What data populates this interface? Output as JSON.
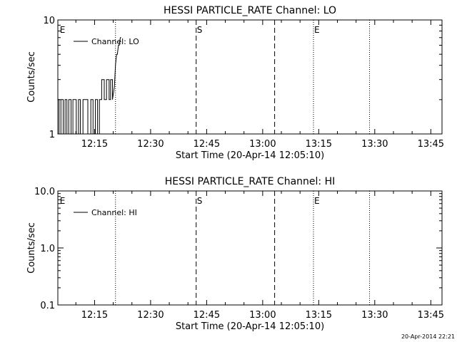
{
  "footer_timestamp": "20-Apr-2014 22:21",
  "chart_data": [
    {
      "type": "line",
      "title": "HESSI PARTICLE_RATE Channel: LO",
      "xlabel": "Start Time (20-Apr-14 12:05:10)",
      "ylabel": "Counts/sec",
      "y_scale": "log",
      "ylim": [
        1,
        10
      ],
      "y_ticks": [
        {
          "value": 1,
          "label": "1"
        },
        {
          "value": 10,
          "label": "10"
        }
      ],
      "xlim_minutes": [
        725.17,
        828.0
      ],
      "x_ticks": [
        {
          "minute": 735,
          "label": "12:15"
        },
        {
          "minute": 750,
          "label": "12:30"
        },
        {
          "minute": 765,
          "label": "12:45"
        },
        {
          "minute": 780,
          "label": "13:00"
        },
        {
          "minute": 795,
          "label": "13:15"
        },
        {
          "minute": 810,
          "label": "13:30"
        },
        {
          "minute": 825,
          "label": "13:45"
        }
      ],
      "legend": {
        "label": "Channel: LO",
        "placement": "top-left"
      },
      "event_markers": [
        {
          "minute": 725.5,
          "label": "E",
          "style": "none"
        },
        {
          "minute": 740.6,
          "label": "",
          "style": "dotted"
        },
        {
          "minute": 762.2,
          "label": "S",
          "style": "dashed"
        },
        {
          "minute": 783.2,
          "label": "",
          "style": "dashed"
        },
        {
          "minute": 793.6,
          "label": "E",
          "style": "dotted"
        },
        {
          "minute": 808.6,
          "label": "",
          "style": "dotted"
        }
      ],
      "series": [
        {
          "x": [
            725.17,
            725.5,
            725.5,
            726.0,
            726.0,
            726.6,
            726.6,
            727.1,
            727.1,
            727.6,
            727.6,
            728.1,
            728.1,
            728.7,
            728.7,
            729.2,
            729.2,
            730.1,
            730.1,
            730.7,
            730.7,
            731.2,
            731.2,
            731.9,
            731.9,
            732.5,
            732.5,
            733.2,
            733.2,
            734.0,
            734.0,
            734.6,
            734.6,
            735.2,
            735.2,
            735.8,
            735.8,
            736.3,
            736.3,
            736.9,
            736.9,
            737.6,
            737.6,
            738.2,
            738.2,
            738.9,
            738.9,
            739.3,
            739.3,
            739.8,
            739.8,
            740.3,
            740.6,
            740.9,
            741.1,
            741.4,
            741.6,
            741.9,
            742.1
          ],
          "y": [
            2,
            2,
            1,
            1,
            2,
            2,
            1,
            1,
            2,
            2,
            1,
            1,
            2,
            2,
            1,
            1,
            2,
            2,
            1,
            1,
            2,
            2,
            1,
            1,
            2,
            2,
            2,
            2,
            1,
            1,
            2,
            2,
            1,
            1,
            2,
            2,
            1,
            1,
            2,
            2,
            3,
            3,
            2,
            2,
            3,
            3,
            2,
            2,
            3,
            3,
            2,
            2.6,
            4,
            5,
            5,
            6,
            6,
            7,
            7
          ]
        }
      ]
    },
    {
      "type": "line",
      "title": "HESSI PARTICLE_RATE Channel: HI",
      "xlabel": "Start Time (20-Apr-14 12:05:10)",
      "ylabel": "Counts/sec",
      "y_scale": "log",
      "ylim": [
        0.1,
        10
      ],
      "y_ticks": [
        {
          "value": 0.1,
          "label": "0.1"
        },
        {
          "value": 1,
          "label": "1.0"
        },
        {
          "value": 10,
          "label": "10.0"
        }
      ],
      "xlim_minutes": [
        725.17,
        828.0
      ],
      "x_ticks": [
        {
          "minute": 735,
          "label": "12:15"
        },
        {
          "minute": 750,
          "label": "12:30"
        },
        {
          "minute": 765,
          "label": "12:45"
        },
        {
          "minute": 780,
          "label": "13:00"
        },
        {
          "minute": 795,
          "label": "13:15"
        },
        {
          "minute": 810,
          "label": "13:30"
        },
        {
          "minute": 825,
          "label": "13:45"
        }
      ],
      "legend": {
        "label": "Channel: HI",
        "placement": "top-left"
      },
      "event_markers": [
        {
          "minute": 725.5,
          "label": "E",
          "style": "none"
        },
        {
          "minute": 740.6,
          "label": "",
          "style": "dotted"
        },
        {
          "minute": 762.2,
          "label": "S",
          "style": "dashed"
        },
        {
          "minute": 783.2,
          "label": "",
          "style": "dashed"
        },
        {
          "minute": 793.6,
          "label": "E",
          "style": "dotted"
        },
        {
          "minute": 808.6,
          "label": "",
          "style": "dotted"
        }
      ],
      "series": [
        {
          "x": [],
          "y": []
        }
      ]
    }
  ]
}
